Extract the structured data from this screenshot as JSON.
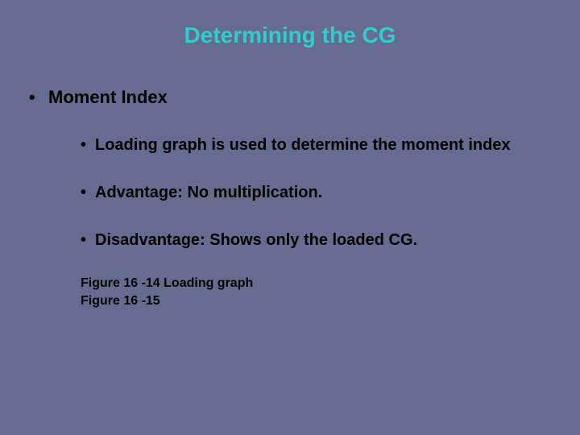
{
  "slide": {
    "background_color": "#666c8f",
    "title": {
      "text": "Determining the CG",
      "color": "#33cccc",
      "font_size_pt": 28,
      "font_weight": "bold"
    },
    "bullets": {
      "level1": [
        {
          "text": "Moment Index"
        }
      ],
      "level2": [
        {
          "text": "Loading graph is used to determine the moment index"
        },
        {
          "text": "Advantage:  No multiplication."
        },
        {
          "text": "Disadvantage:  Shows only the loaded CG."
        }
      ],
      "bullet_glyph": "•",
      "text_color": "#000000",
      "level1_font_size_pt": 22,
      "level2_font_size_pt": 20,
      "font_weight": "bold"
    },
    "figure_refs": [
      "Figure 16 -14 Loading graph",
      "Figure 16 -15"
    ],
    "figure_ref_font_size_pt": 16
  }
}
